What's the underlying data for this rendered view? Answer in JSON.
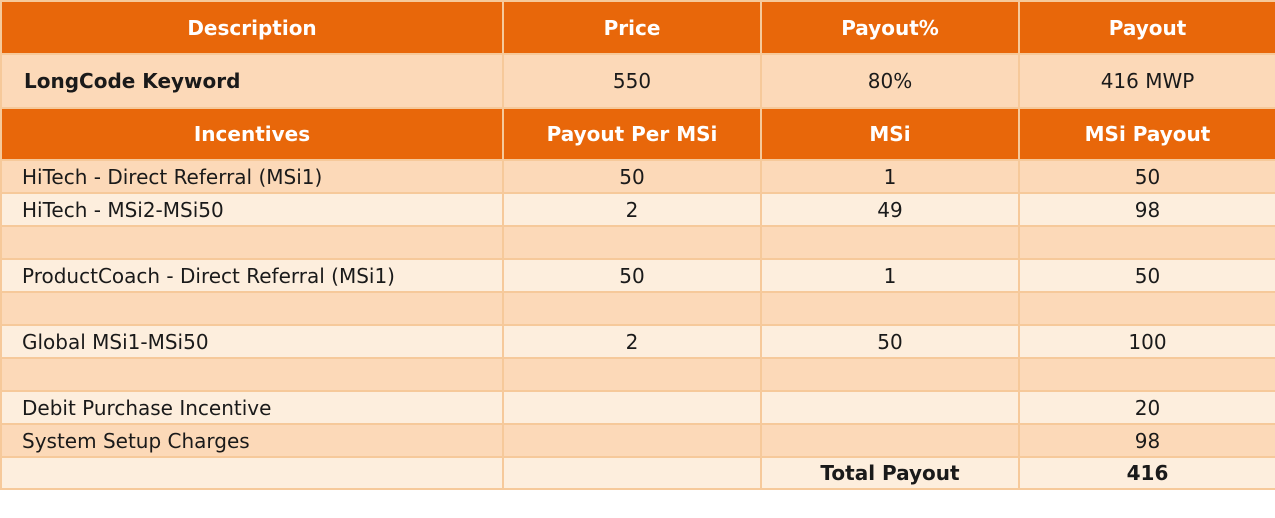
{
  "header": {
    "description": "Description",
    "price": "Price",
    "payout_pct": "Payout%",
    "payout": "Payout"
  },
  "product": {
    "description": "LongCode Keyword",
    "price": "550",
    "payout_pct": "80%",
    "payout": "416 MWP"
  },
  "incentives_header": {
    "incentives": "Incentives",
    "payout_per_msi": "Payout Per MSi",
    "msi": "MSi",
    "msi_payout": "MSi Payout"
  },
  "rows": [
    {
      "description": "HiTech - Direct Referral (MSi1)",
      "payout_per_msi": "50",
      "msi": "1",
      "msi_payout": "50"
    },
    {
      "description": "HiTech - MSi2-MSi50",
      "payout_per_msi": "2",
      "msi": "49",
      "msi_payout": "98"
    },
    {
      "description": "",
      "payout_per_msi": "",
      "msi": "",
      "msi_payout": ""
    },
    {
      "description": "ProductCoach - Direct Referral (MSi1)",
      "payout_per_msi": "50",
      "msi": "1",
      "msi_payout": "50"
    },
    {
      "description": "",
      "payout_per_msi": "",
      "msi": "",
      "msi_payout": ""
    },
    {
      "description": "Global MSi1-MSi50",
      "payout_per_msi": "2",
      "msi": "50",
      "msi_payout": "100"
    },
    {
      "description": "",
      "payout_per_msi": "",
      "msi": "",
      "msi_payout": ""
    },
    {
      "description": "Debit Purchase Incentive",
      "payout_per_msi": "",
      "msi": "",
      "msi_payout": "20"
    },
    {
      "description": "System Setup Charges",
      "payout_per_msi": "",
      "msi": "",
      "msi_payout": "98"
    }
  ],
  "total": {
    "label": "Total Payout",
    "value": "416"
  }
}
